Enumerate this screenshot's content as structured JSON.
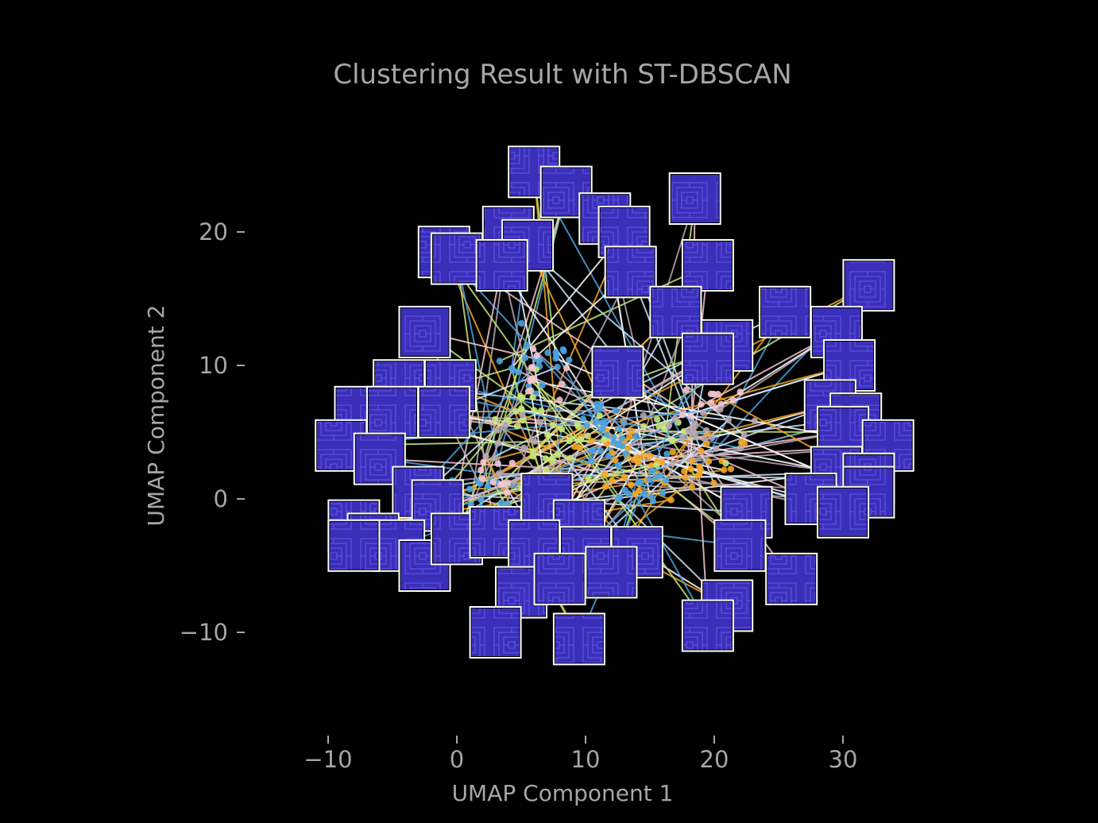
{
  "chart_data": {
    "type": "scatter",
    "title": "Clustering Result with ST-DBSCAN",
    "xlabel": "UMAP Component 1",
    "ylabel": "UMAP Component 2",
    "xlim": [
      -12,
      38
    ],
    "ylim": [
      -17.5,
      27.5
    ],
    "xticks": [
      -10,
      0,
      10,
      20,
      30
    ],
    "yticks": [
      -10,
      0,
      10,
      20
    ],
    "xtick_labels": [
      "−10",
      "0",
      "10",
      "20",
      "30"
    ],
    "ytick_labels": [
      "−10",
      "0",
      "10",
      "20"
    ],
    "grid": false,
    "background": "#000000",
    "text_color": "#a6a6a6",
    "cluster_colors": [
      "#f5a623",
      "#4aa3df",
      "#c6e57a",
      "#f7c6d0",
      "#b9a5b5",
      "#ffffff",
      "#cfe6ff"
    ],
    "thumbnail_color": "#3a2fb8",
    "clusters": [
      {
        "name": "orange",
        "color": "#f5a623",
        "centers": [
          [
            12,
            4
          ],
          [
            20,
            2.5
          ],
          [
            15,
            2
          ]
        ],
        "spread": 2.6,
        "n": 60
      },
      {
        "name": "blue",
        "color": "#4aa3df",
        "centers": [
          [
            6,
            10
          ],
          [
            11,
            5
          ],
          [
            14,
            1.5
          ],
          [
            2,
            0
          ]
        ],
        "spread": 2.8,
        "n": 90
      },
      {
        "name": "lime",
        "color": "#c6e57a",
        "centers": [
          [
            5,
            7
          ],
          [
            9,
            4.5
          ],
          [
            17,
            5
          ],
          [
            7,
            2
          ]
        ],
        "spread": 2.6,
        "n": 50
      },
      {
        "name": "pink",
        "color": "#f7c6d0",
        "centers": [
          [
            6,
            9
          ],
          [
            20,
            7
          ],
          [
            3,
            2
          ]
        ],
        "spread": 2.2,
        "n": 35
      },
      {
        "name": "mauve",
        "color": "#b9a5b5",
        "centers": [
          [
            18,
            6
          ],
          [
            21,
            5
          ],
          [
            4,
            4
          ]
        ],
        "spread": 2.2,
        "n": 30
      }
    ],
    "thumbnails": [
      [
        6,
        24.5
      ],
      [
        8.5,
        23
      ],
      [
        18.5,
        22.5
      ],
      [
        11.5,
        21
      ],
      [
        4,
        20
      ],
      [
        13,
        20
      ],
      [
        5.5,
        19
      ],
      [
        -1,
        18.5
      ],
      [
        0,
        18
      ],
      [
        19.5,
        17.5
      ],
      [
        3.5,
        17.5
      ],
      [
        13.5,
        17
      ],
      [
        17,
        14
      ],
      [
        25.5,
        14
      ],
      [
        32,
        16
      ],
      [
        21,
        11.5
      ],
      [
        -2.5,
        12.5
      ],
      [
        29.5,
        12.5
      ],
      [
        19.5,
        10.5
      ],
      [
        30.5,
        10
      ],
      [
        -4.5,
        8.5
      ],
      [
        -0.5,
        8.5
      ],
      [
        12.5,
        9.5
      ],
      [
        -7.5,
        6.5
      ],
      [
        -5,
        6.5
      ],
      [
        -1,
        6.5
      ],
      [
        29,
        7
      ],
      [
        31,
        6
      ],
      [
        -9,
        4
      ],
      [
        -6,
        3
      ],
      [
        30,
        5
      ],
      [
        33.5,
        4
      ],
      [
        29.5,
        2
      ],
      [
        32,
        1.5
      ],
      [
        -3,
        0.5
      ],
      [
        -1.5,
        -0.5
      ],
      [
        7,
        0
      ],
      [
        9.5,
        -2
      ],
      [
        27.5,
        0
      ],
      [
        22.5,
        -1
      ],
      [
        -8,
        -2
      ],
      [
        -6.5,
        -3
      ],
      [
        -4.5,
        -3.5
      ],
      [
        -2.5,
        -5
      ],
      [
        0,
        -3
      ],
      [
        3,
        -2.5
      ],
      [
        6,
        -3.5
      ],
      [
        10,
        -4
      ],
      [
        14,
        -4
      ],
      [
        12,
        -5.5
      ],
      [
        22,
        -3.5
      ],
      [
        26,
        -6
      ],
      [
        5,
        -7
      ],
      [
        8,
        -6
      ],
      [
        21,
        -8
      ],
      [
        3,
        -10
      ],
      [
        9.5,
        -10.5
      ],
      [
        19.5,
        -9.5
      ],
      [
        -8,
        -3.5
      ],
      [
        32,
        0.5
      ],
      [
        30,
        -1
      ]
    ]
  }
}
